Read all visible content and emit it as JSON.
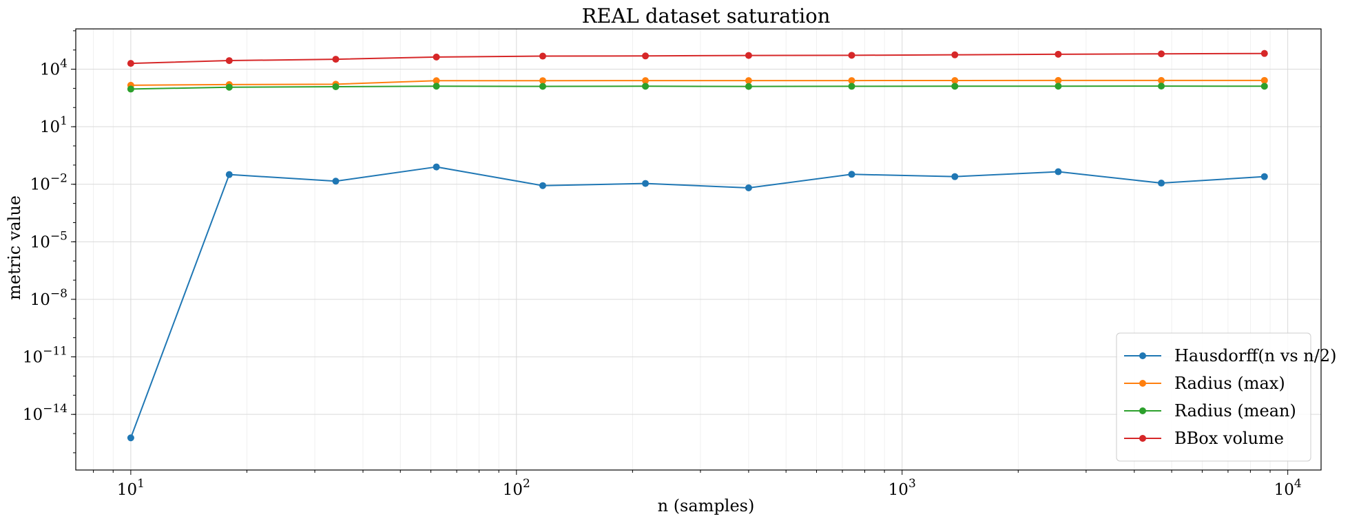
{
  "chart_data": {
    "type": "line",
    "title": "REAL dataset saturation",
    "xlabel": "n (samples)",
    "ylabel": "metric value",
    "xscale": "log",
    "yscale": "log",
    "xlim": [
      7.2,
      12200
    ],
    "ylim_exp": [
      -16.9,
      6.1
    ],
    "grid": true,
    "legend_position": "lower right",
    "x": [
      10,
      18,
      34,
      62,
      117,
      216,
      400,
      740,
      1370,
      2540,
      4700,
      8700
    ],
    "x_ticks": [
      {
        "value": 10,
        "base": "10",
        "exp": "1"
      },
      {
        "value": 100,
        "base": "10",
        "exp": "2"
      },
      {
        "value": 1000,
        "base": "10",
        "exp": "3"
      },
      {
        "value": 10000,
        "base": "10",
        "exp": "4"
      }
    ],
    "y_ticks": [
      {
        "exp_value": 4,
        "base": "10",
        "exp": "4"
      },
      {
        "exp_value": 1,
        "base": "10",
        "exp": "1"
      },
      {
        "exp_value": -2,
        "base": "10",
        "exp": "−2"
      },
      {
        "exp_value": -5,
        "base": "10",
        "exp": "−5"
      },
      {
        "exp_value": -8,
        "base": "10",
        "exp": "−8"
      },
      {
        "exp_value": -11,
        "base": "10",
        "exp": "−11"
      },
      {
        "exp_value": -14,
        "base": "10",
        "exp": "−14"
      }
    ],
    "series": [
      {
        "name": "Hausdorff(n vs n/2)",
        "color": "#1f77b4",
        "values": [
          6e-16,
          0.032,
          0.0145,
          0.08,
          0.0085,
          0.011,
          0.0065,
          0.033,
          0.025,
          0.045,
          0.0115,
          0.025
        ]
      },
      {
        "name": "Radius (max)",
        "color": "#ff7f0e",
        "values": [
          1450,
          1580,
          1650,
          2500,
          2520,
          2530,
          2530,
          2550,
          2560,
          2580,
          2580,
          2600
        ]
      },
      {
        "name": "Radius (mean)",
        "color": "#2ca02c",
        "values": [
          920,
          1150,
          1220,
          1300,
          1270,
          1290,
          1260,
          1280,
          1290,
          1300,
          1310,
          1290
        ]
      },
      {
        "name": "BBox volume",
        "color": "#d62728",
        "values": [
          20000,
          28000,
          33000,
          43000,
          48000,
          49000,
          52000,
          53000,
          56000,
          60000,
          63000,
          66000
        ]
      }
    ]
  }
}
